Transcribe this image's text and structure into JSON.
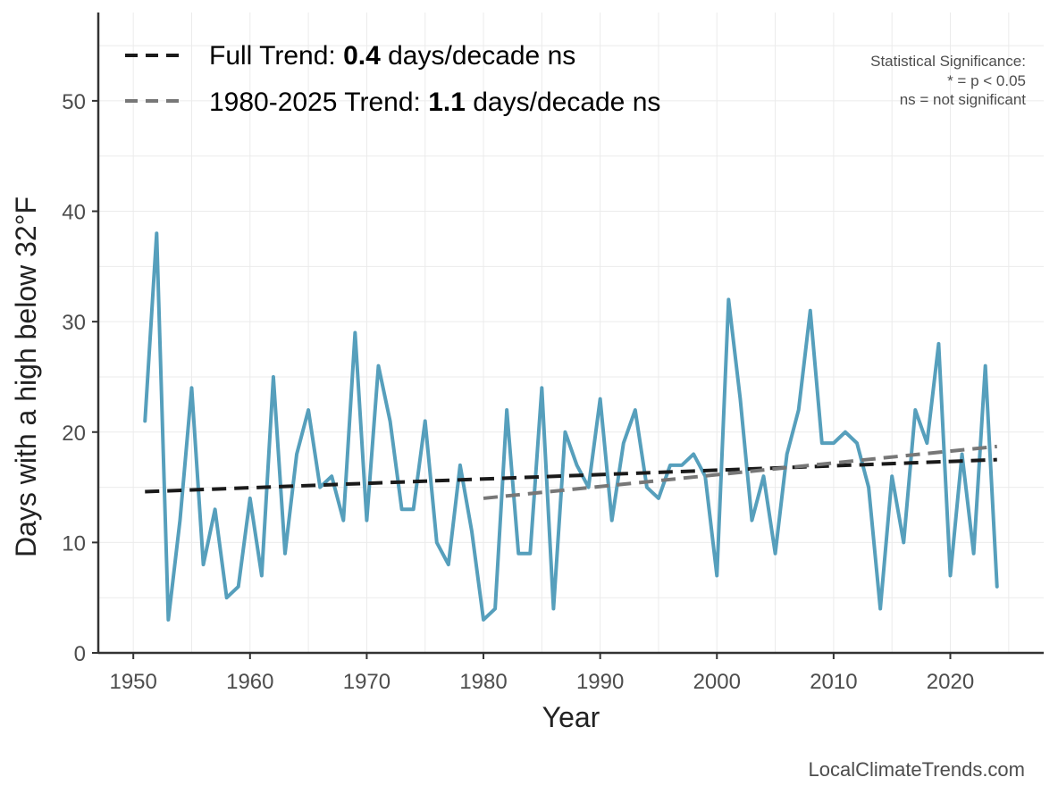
{
  "chart_data": {
    "type": "line",
    "xlabel": "Year",
    "ylabel": "Days with a high below 32°F",
    "xlim": [
      1947,
      2028
    ],
    "ylim": [
      0,
      58
    ],
    "xticks": [
      1950,
      1960,
      1970,
      1980,
      1990,
      2000,
      2010,
      2020
    ],
    "yticks": [
      0,
      10,
      20,
      30,
      40,
      50
    ],
    "series": [
      {
        "name": "Days with a high below 32°F",
        "color": "#569fbc",
        "x": [
          1951,
          1952,
          1953,
          1954,
          1955,
          1956,
          1957,
          1958,
          1959,
          1960,
          1961,
          1962,
          1963,
          1964,
          1965,
          1966,
          1967,
          1968,
          1969,
          1970,
          1971,
          1972,
          1973,
          1974,
          1975,
          1976,
          1977,
          1978,
          1979,
          1980,
          1981,
          1982,
          1983,
          1984,
          1985,
          1986,
          1987,
          1988,
          1989,
          1990,
          1991,
          1992,
          1993,
          1994,
          1995,
          1996,
          1997,
          1998,
          1999,
          2000,
          2001,
          2002,
          2003,
          2004,
          2005,
          2006,
          2007,
          2008,
          2009,
          2010,
          2011,
          2012,
          2013,
          2014,
          2015,
          2016,
          2017,
          2018,
          2019,
          2020,
          2021,
          2022,
          2023,
          2024
        ],
        "values": [
          21,
          38,
          3,
          12,
          24,
          8,
          13,
          5,
          6,
          14,
          7,
          25,
          9,
          18,
          22,
          15,
          16,
          12,
          29,
          12,
          26,
          21,
          13,
          13,
          21,
          10,
          8,
          17,
          11,
          3,
          4,
          22,
          9,
          9,
          24,
          4,
          20,
          17,
          15,
          23,
          12,
          19,
          22,
          15,
          14,
          17,
          17,
          18,
          16,
          7,
          32,
          23,
          12,
          16,
          9,
          18,
          22,
          31,
          19,
          19,
          20,
          19,
          15,
          4,
          16,
          10,
          22,
          19,
          28,
          7,
          18,
          9,
          26,
          6
        ]
      }
    ],
    "trends": [
      {
        "name": "Full Trend",
        "color": "#1a1a1a",
        "x": [
          1951,
          2024
        ],
        "values": [
          14.6,
          17.5
        ],
        "label_prefix": "Full Trend: ",
        "label_value": "0.4",
        "label_suffix": " days/decade ns"
      },
      {
        "name": "1980-2025 Trend",
        "color": "#777777",
        "x": [
          1980,
          2024
        ],
        "values": [
          14.0,
          18.7
        ],
        "label_prefix": "1980-2025 Trend: ",
        "label_value": "1.1",
        "label_suffix": " days/decade ns"
      }
    ],
    "significance_note": {
      "title": "Statistical Significance:",
      "line1": "* = p < 0.05",
      "line2": "ns = not significant"
    },
    "legend_position": "top-left",
    "grid": true
  },
  "credit": "LocalClimateTrends.com"
}
